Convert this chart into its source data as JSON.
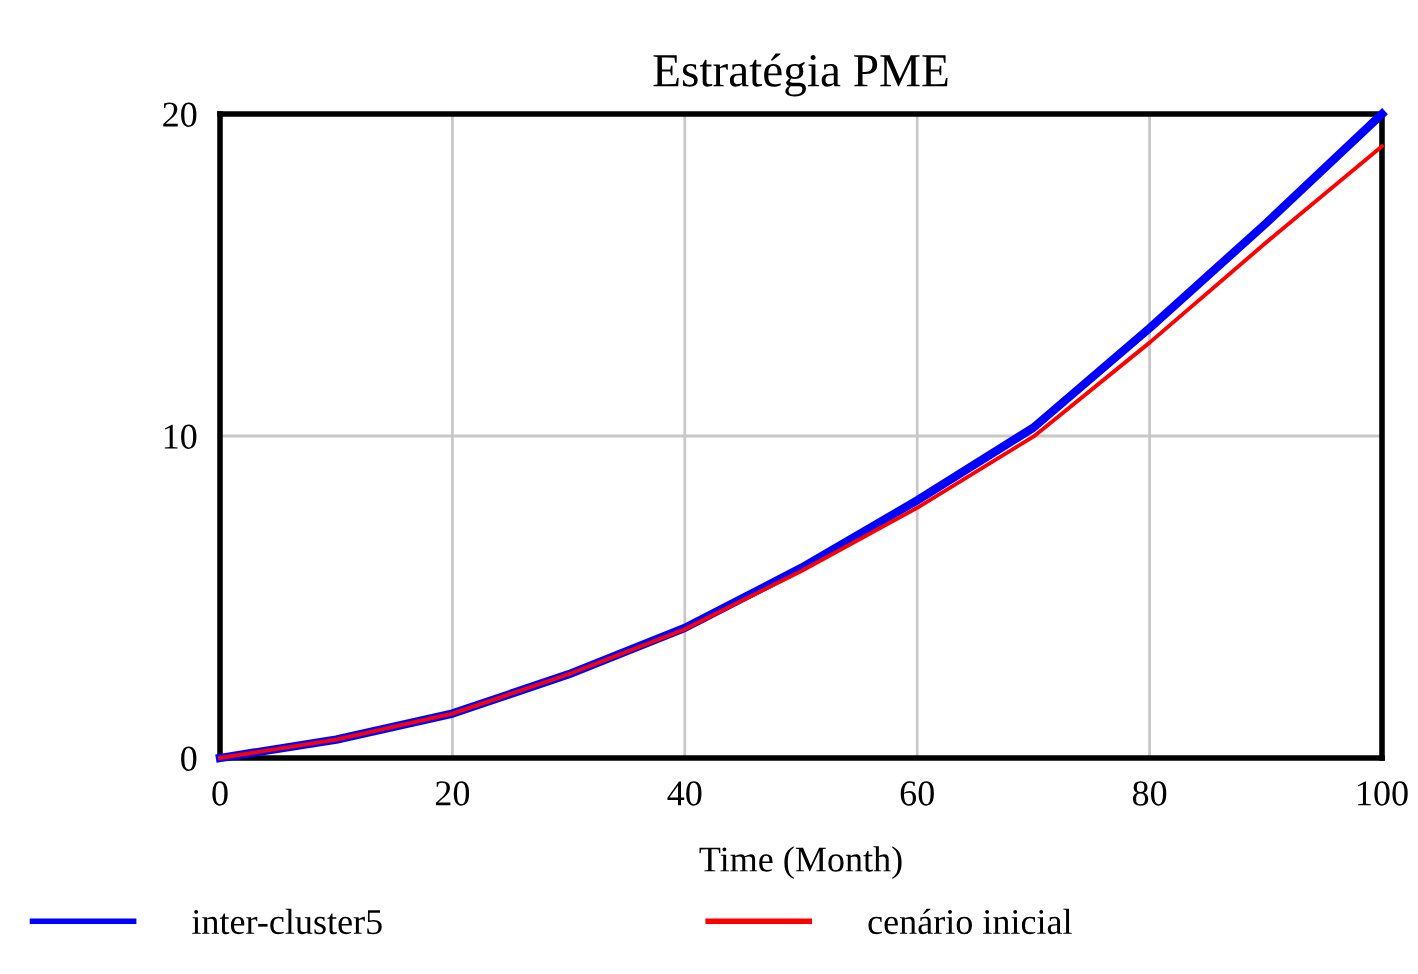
{
  "chart_data": {
    "type": "line",
    "title": "Estratégia PME",
    "xlabel": "Time (Month)",
    "x": [
      0,
      10,
      20,
      30,
      40,
      50,
      60,
      70,
      80,
      90,
      100
    ],
    "series": [
      {
        "name": "inter-cluster5",
        "color": "#0000ff",
        "values": [
          0,
          0.57,
          1.38,
          2.6,
          4.04,
          5.9,
          8.0,
          10.26,
          13.35,
          16.6,
          20.0
        ]
      },
      {
        "name": "cenário inicial",
        "color": "#ff0000",
        "values": [
          0,
          0.57,
          1.38,
          2.6,
          4.0,
          5.8,
          7.77,
          9.98,
          12.9,
          16.0,
          19.0
        ]
      }
    ],
    "xlim": [
      0,
      100
    ],
    "xticks": [
      0,
      20,
      40,
      60,
      80,
      100
    ],
    "ylim": [
      0,
      20
    ],
    "yticks": [
      0,
      10,
      20
    ],
    "grid": true,
    "legend": "bottom",
    "marker": "none",
    "line_style": "solid"
  }
}
